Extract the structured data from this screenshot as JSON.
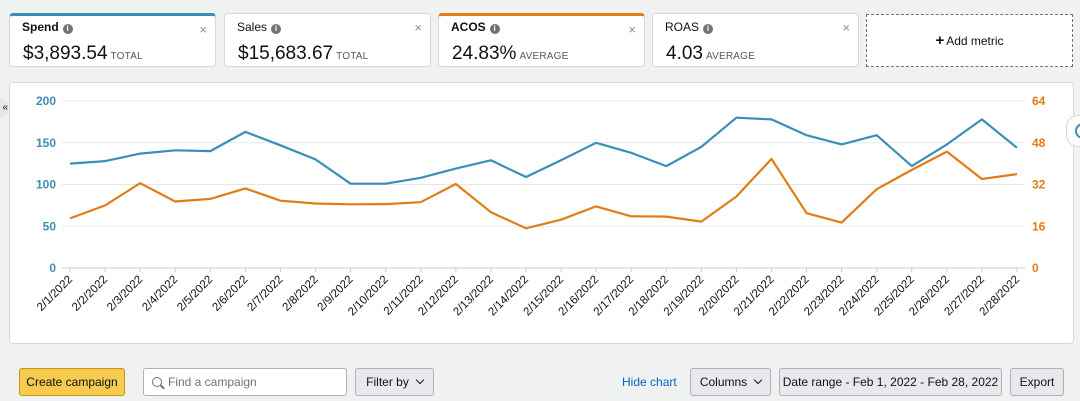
{
  "metrics": [
    {
      "label": "Spend",
      "value": "$3,893.54",
      "unit": "TOTAL",
      "close": "×"
    },
    {
      "label": "Sales",
      "value": "$15,683.67",
      "unit": "TOTAL",
      "close": "×"
    },
    {
      "label": "ACOS",
      "value": "24.83%",
      "unit": "AVERAGE",
      "close": "×"
    },
    {
      "label": "ROAS",
      "value": "4.03",
      "unit": "AVERAGE",
      "close": "×"
    }
  ],
  "info_glyph": "i",
  "add_metric": {
    "plus": "+",
    "label": "Add metric"
  },
  "chart_data": {
    "type": "line",
    "x": [
      "2/1/2022",
      "2/2/2022",
      "2/3/2022",
      "2/4/2022",
      "2/5/2022",
      "2/6/2022",
      "2/7/2022",
      "2/8/2022",
      "2/9/2022",
      "2/10/2022",
      "2/11/2022",
      "2/12/2022",
      "2/13/2022",
      "2/14/2022",
      "2/15/2022",
      "2/16/2022",
      "2/17/2022",
      "2/18/2022",
      "2/19/2022",
      "2/20/2022",
      "2/21/2022",
      "2/22/2022",
      "2/23/2022",
      "2/24/2022",
      "2/25/2022",
      "2/26/2022",
      "2/27/2022",
      "2/28/2022"
    ],
    "series": [
      {
        "name": "Spend",
        "axis": "left",
        "color": "#3a8fb7",
        "values": [
          125,
          128,
          137,
          141,
          140,
          163,
          147,
          130,
          101,
          101,
          108,
          119,
          129,
          109,
          129,
          150,
          138,
          122,
          145,
          180,
          178,
          159,
          148,
          159,
          122,
          148,
          178,
          144
        ]
      },
      {
        "name": "ACOS",
        "axis": "right",
        "color": "#e17c18",
        "values": [
          19,
          24,
          32.5,
          25.5,
          26.5,
          30.5,
          25.8,
          24.7,
          24.4,
          24.5,
          25.2,
          32.2,
          21.4,
          15.2,
          18.5,
          23.6,
          19.8,
          19.7,
          17.8,
          27.4,
          41.8,
          21,
          17.4,
          30.2,
          37.6,
          44.6,
          34.1,
          36
        ]
      }
    ],
    "y_left": {
      "ticks": [
        0,
        50,
        100,
        150,
        200
      ],
      "ylim": [
        0,
        200
      ],
      "color": "#3a8fb7"
    },
    "y_right": {
      "ticks": [
        0,
        16,
        32,
        48,
        64
      ],
      "ylim": [
        0,
        64
      ],
      "color": "#e17c18"
    },
    "grid": true
  },
  "toolbar": {
    "create_campaign": "Create campaign",
    "search_placeholder": "Find a campaign",
    "filter_by": "Filter by",
    "hide_chart": "Hide chart",
    "columns": "Columns",
    "date_range": "Date range - Feb 1, 2022 - Feb 28, 2022",
    "export": "Export"
  },
  "edge_left_glyph": "«"
}
